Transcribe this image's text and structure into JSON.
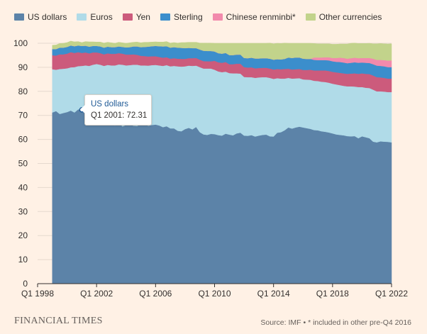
{
  "brand": "FINANCIAL TIMES",
  "source": "Source: IMF • * included in other pre-Q4 2016",
  "tooltip": {
    "series": "US dollars",
    "label": "Q1 2001: 72.31"
  },
  "chart_data": {
    "type": "area",
    "stacked": true,
    "x": [
      1999.0,
      1999.25,
      1999.5,
      1999.75,
      2000.0,
      2000.25,
      2000.5,
      2000.75,
      2001.0,
      2001.25,
      2001.5,
      2001.75,
      2002.0,
      2002.25,
      2002.5,
      2002.75,
      2003.0,
      2003.25,
      2003.5,
      2003.75,
      2004.0,
      2004.25,
      2004.5,
      2004.75,
      2005.0,
      2005.25,
      2005.5,
      2005.75,
      2006.0,
      2006.25,
      2006.5,
      2006.75,
      2007.0,
      2007.25,
      2007.5,
      2007.75,
      2008.0,
      2008.25,
      2008.5,
      2008.75,
      2009.0,
      2009.25,
      2009.5,
      2009.75,
      2010.0,
      2010.25,
      2010.5,
      2010.75,
      2011.0,
      2011.25,
      2011.5,
      2011.75,
      2012.0,
      2012.25,
      2012.5,
      2012.75,
      2013.0,
      2013.25,
      2013.5,
      2013.75,
      2014.0,
      2014.25,
      2014.5,
      2014.75,
      2015.0,
      2015.25,
      2015.5,
      2015.75,
      2016.0,
      2016.25,
      2016.5,
      2016.75,
      2017.0,
      2017.25,
      2017.5,
      2017.75,
      2018.0,
      2018.25,
      2018.5,
      2018.75,
      2019.0,
      2019.25,
      2019.5,
      2019.75,
      2020.0,
      2020.25,
      2020.5,
      2020.75,
      2021.0,
      2021.25,
      2021.5,
      2021.75,
      2022.0
    ],
    "series": [
      {
        "name": "US dollars",
        "color": "#5c83a8",
        "values": [
          71.2,
          71.8,
          70.6,
          71.0,
          71.4,
          72.0,
          71.2,
          72.5,
          72.3,
          70.6,
          69.2,
          68.6,
          67.8,
          67.0,
          66.2,
          66.4,
          66.0,
          65.8,
          67.0,
          65.4,
          66.0,
          66.3,
          65.7,
          65.6,
          66.3,
          66.5,
          65.7,
          66.0,
          66.2,
          65.8,
          65.1,
          65.5,
          64.6,
          64.6,
          63.6,
          63.4,
          64.3,
          64.8,
          64.2,
          65.2,
          63.0,
          62.1,
          61.9,
          62.3,
          62.2,
          61.8,
          61.6,
          62.4,
          62.0,
          61.7,
          62.5,
          62.8,
          61.6,
          61.5,
          61.8,
          61.2,
          61.6,
          61.9,
          62.0,
          61.3,
          61.2,
          62.8,
          63.0,
          63.8,
          65.0,
          64.5,
          65.0,
          65.3,
          65.0,
          64.7,
          64.4,
          63.9,
          63.8,
          63.4,
          63.2,
          62.9,
          62.5,
          62.1,
          61.9,
          61.7,
          61.4,
          61.3,
          61.4,
          60.5,
          61.3,
          60.9,
          60.5,
          59.1,
          58.8,
          59.2,
          59.1,
          59.0,
          58.8
        ]
      },
      {
        "name": "Euros",
        "color": "#b0dbe8",
        "values": [
          18.0,
          17.2,
          18.7,
          18.4,
          18.2,
          18.0,
          18.9,
          18.0,
          18.3,
          20.2,
          21.4,
          22.5,
          23.6,
          24.1,
          24.4,
          24.6,
          24.8,
          25.0,
          24.2,
          25.7,
          24.8,
          24.6,
          25.4,
          25.5,
          24.5,
          24.3,
          25.0,
          24.9,
          24.8,
          25.0,
          25.5,
          25.4,
          25.8,
          26.0,
          26.8,
          26.9,
          26.1,
          25.9,
          26.4,
          25.5,
          27.1,
          27.4,
          27.6,
          27.2,
          26.8,
          26.5,
          26.4,
          25.8,
          25.6,
          25.8,
          25.0,
          24.6,
          24.4,
          24.4,
          24.1,
          24.4,
          24.2,
          24.0,
          23.9,
          24.3,
          24.0,
          22.7,
          22.3,
          21.5,
          20.6,
          20.8,
          20.4,
          20.2,
          20.0,
          20.2,
          20.4,
          20.5,
          20.5,
          20.6,
          20.7,
          20.7,
          20.7,
          20.8,
          20.7,
          20.6,
          20.7,
          20.8,
          20.6,
          21.3,
          20.5,
          20.6,
          20.9,
          21.6,
          21.2,
          20.8,
          20.8,
          20.7,
          20.9
        ]
      },
      {
        "name": "Yen",
        "color": "#cc5b7c",
        "values": [
          5.8,
          5.9,
          6.1,
          6.0,
          6.1,
          6.3,
          5.9,
          5.8,
          5.4,
          5.4,
          5.2,
          5.1,
          4.8,
          4.8,
          4.8,
          4.8,
          4.8,
          4.8,
          4.7,
          4.6,
          4.5,
          4.4,
          4.3,
          4.1,
          4.0,
          3.9,
          3.8,
          3.7,
          3.6,
          3.5,
          3.4,
          3.3,
          3.2,
          3.2,
          3.2,
          3.2,
          3.1,
          3.1,
          3.2,
          3.2,
          3.1,
          3.1,
          3.0,
          3.0,
          3.7,
          3.8,
          3.9,
          4.0,
          3.7,
          3.8,
          4.0,
          4.1,
          4.1,
          4.0,
          4.1,
          4.0,
          3.9,
          3.9,
          3.9,
          3.9,
          3.9,
          3.8,
          3.9,
          4.0,
          3.8,
          3.8,
          3.8,
          3.8,
          3.9,
          4.0,
          4.2,
          4.3,
          4.4,
          4.7,
          4.8,
          4.9,
          4.9,
          5.0,
          5.1,
          5.2,
          5.2,
          5.3,
          5.5,
          5.5,
          5.7,
          5.8,
          5.8,
          5.9,
          5.9,
          5.8,
          5.7,
          5.6,
          5.6
        ]
      },
      {
        "name": "Sterling",
        "color": "#3b8ecc",
        "values": [
          2.6,
          2.7,
          2.8,
          2.8,
          2.8,
          2.8,
          2.8,
          2.8,
          2.9,
          2.8,
          2.8,
          2.7,
          2.7,
          2.8,
          2.8,
          2.8,
          2.8,
          2.8,
          2.8,
          2.8,
          3.0,
          3.1,
          3.3,
          3.5,
          3.6,
          3.8,
          4.1,
          4.2,
          4.3,
          4.5,
          4.7,
          4.6,
          4.6,
          4.6,
          4.6,
          4.6,
          4.5,
          4.3,
          4.2,
          4.1,
          4.2,
          4.3,
          4.3,
          4.3,
          3.9,
          3.8,
          3.8,
          3.8,
          3.8,
          3.8,
          3.8,
          3.8,
          3.8,
          3.9,
          4.0,
          4.1,
          4.0,
          4.0,
          4.0,
          4.1,
          4.1,
          4.1,
          4.1,
          4.2,
          4.7,
          4.8,
          4.9,
          4.8,
          4.7,
          4.6,
          4.5,
          4.4,
          4.3,
          4.3,
          4.3,
          4.4,
          4.4,
          4.4,
          4.5,
          4.5,
          4.4,
          4.5,
          4.6,
          4.6,
          4.5,
          4.6,
          4.6,
          4.7,
          4.8,
          4.8,
          4.8,
          4.8,
          4.8
        ]
      },
      {
        "name": "Chinese renminbi*",
        "color": "#f28aac",
        "values": [
          0,
          0,
          0,
          0,
          0,
          0,
          0,
          0,
          0,
          0,
          0,
          0,
          0,
          0,
          0,
          0,
          0,
          0,
          0,
          0,
          0,
          0,
          0,
          0,
          0,
          0,
          0,
          0,
          0,
          0,
          0,
          0,
          0,
          0,
          0,
          0,
          0,
          0,
          0,
          0,
          0,
          0,
          0,
          0,
          0,
          0,
          0,
          0,
          0,
          0,
          0,
          0,
          0,
          0,
          0,
          0,
          0,
          0,
          0,
          0,
          0,
          0,
          0,
          0,
          0,
          0,
          0,
          0,
          0,
          0,
          0,
          1.0,
          1.1,
          1.1,
          1.2,
          1.3,
          1.4,
          1.6,
          1.8,
          1.9,
          1.9,
          1.9,
          1.9,
          1.9,
          1.9,
          2.0,
          2.1,
          2.3,
          2.4,
          2.5,
          2.6,
          2.7,
          2.8
        ]
      },
      {
        "name": "Other currencies",
        "color": "#c2d38b",
        "values": [
          1.6,
          1.7,
          1.7,
          1.8,
          1.8,
          1.8,
          1.8,
          1.6,
          1.4,
          1.7,
          2.0,
          1.7,
          1.6,
          1.8,
          1.9,
          1.8,
          1.8,
          1.6,
          1.7,
          1.7,
          1.7,
          1.8,
          1.7,
          1.8,
          1.8,
          1.9,
          1.8,
          1.7,
          1.7,
          1.7,
          1.8,
          1.9,
          1.9,
          1.9,
          1.9,
          2.2,
          2.3,
          2.3,
          2.4,
          2.4,
          2.7,
          3.2,
          3.3,
          3.3,
          3.4,
          4.1,
          4.3,
          4.0,
          4.9,
          4.9,
          4.7,
          4.7,
          6.1,
          6.2,
          6.0,
          6.3,
          6.3,
          6.2,
          6.2,
          6.5,
          6.6,
          6.6,
          6.6,
          6.6,
          5.9,
          6.1,
          5.9,
          5.9,
          6.4,
          6.5,
          6.5,
          5.8,
          5.7,
          5.7,
          5.6,
          5.6,
          5.7,
          5.7,
          5.7,
          5.8,
          6.1,
          6.2,
          6.1,
          6.1,
          6.0,
          6.0,
          6.1,
          6.2,
          6.7,
          6.8,
          6.8,
          6.9,
          6.9
        ]
      }
    ],
    "xticks": [
      {
        "value": 1998,
        "label": "Q1 1998"
      },
      {
        "value": 2002,
        "label": "Q1 2002"
      },
      {
        "value": 2006,
        "label": "Q1 2006"
      },
      {
        "value": 2010,
        "label": "Q1 2010"
      },
      {
        "value": 2014,
        "label": "Q1 2014"
      },
      {
        "value": 2018,
        "label": "Q1 2018"
      },
      {
        "value": 2022,
        "label": "Q1 2022"
      }
    ],
    "yticks": [
      0,
      10,
      20,
      30,
      40,
      50,
      60,
      70,
      80,
      90,
      100
    ],
    "xlim": [
      1998,
      2022
    ],
    "ylim": [
      0,
      100
    ],
    "grid": true,
    "legend": "top-left"
  }
}
